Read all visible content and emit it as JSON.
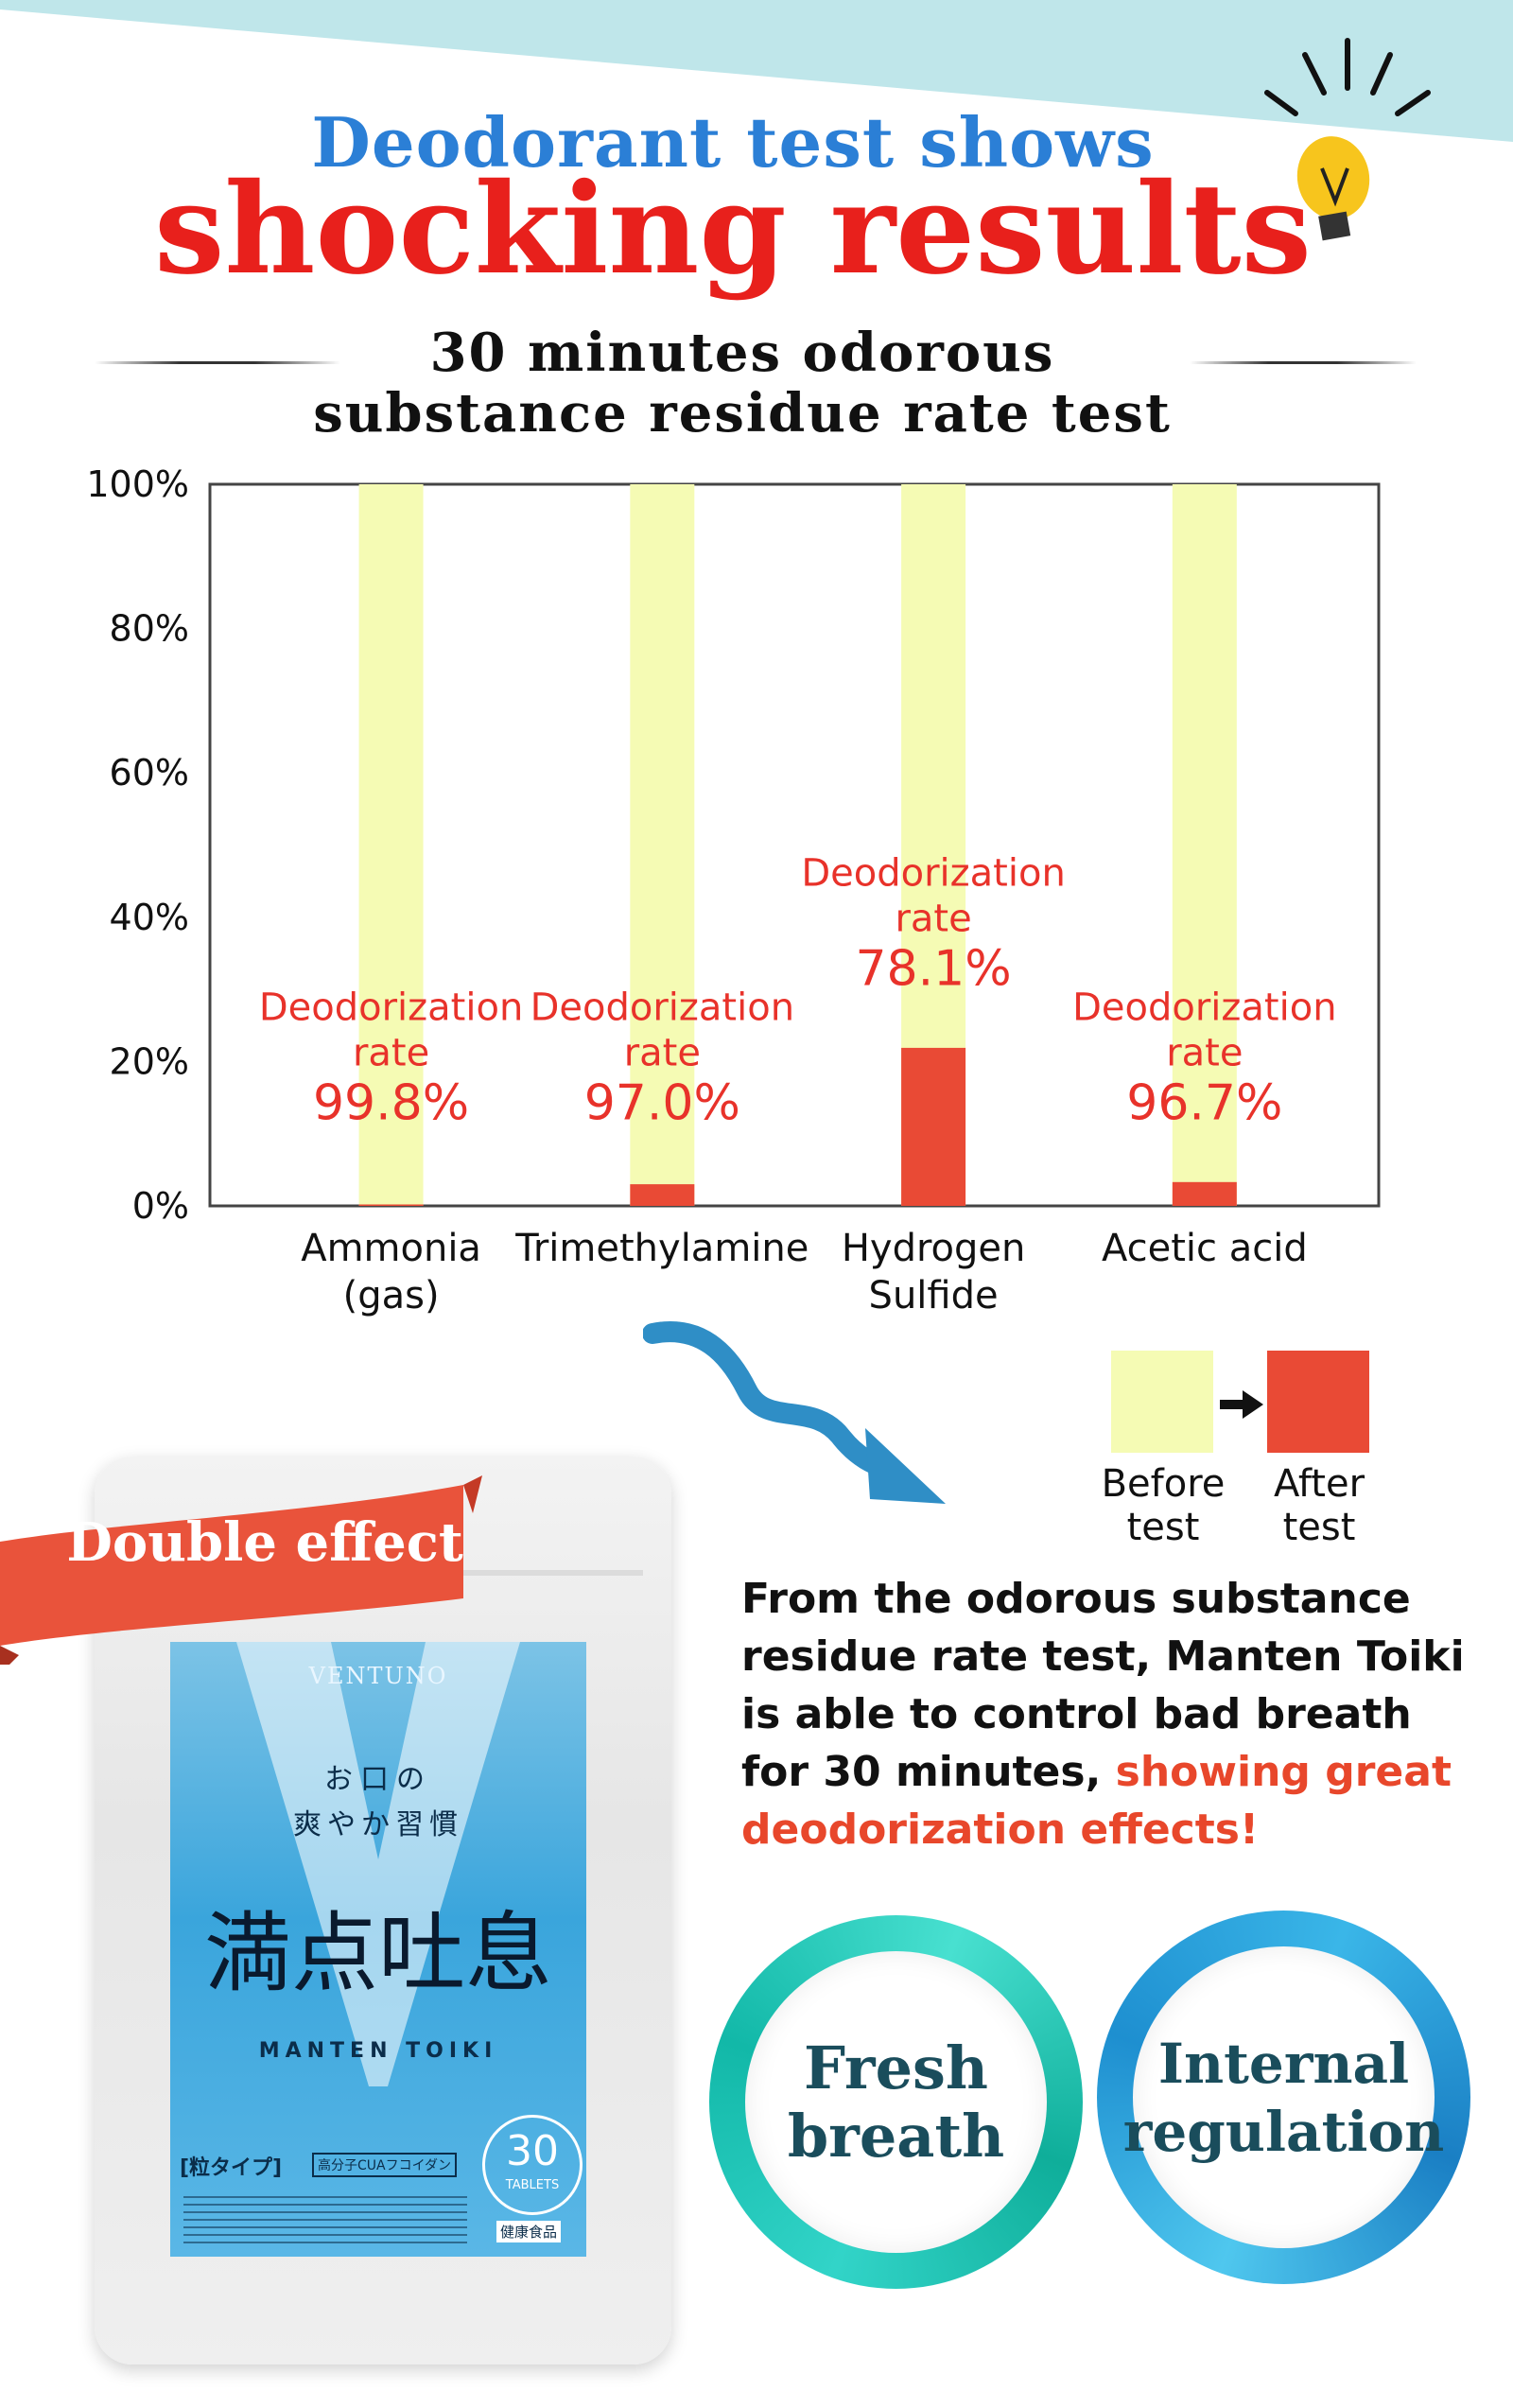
{
  "header": {
    "line1": "Deodorant test shows",
    "line2": "shocking results"
  },
  "chart_title": {
    "line1": "30 minutes odorous",
    "line2": "substance residue rate test"
  },
  "chart_data": {
    "type": "bar",
    "title": "30 minutes odorous substance residue rate test",
    "categories": [
      [
        "Ammonia",
        "(gas)"
      ],
      [
        "Trimethylamine"
      ],
      [
        "Hydrogen",
        "Sulfide"
      ],
      [
        "Acetic acid"
      ]
    ],
    "series": [
      {
        "name": "Before test",
        "values": [
          100,
          100,
          100,
          100
        ]
      },
      {
        "name": "After test",
        "values": [
          0.2,
          3.0,
          21.9,
          3.3
        ]
      }
    ],
    "annotations": [
      {
        "label_line1": "Deodorization",
        "label_line2": "rate",
        "value": "99.8%"
      },
      {
        "label_line1": "Deodorization",
        "label_line2": "rate",
        "value": "97.0%"
      },
      {
        "label_line1": "Deodorization",
        "label_line2": "rate",
        "value": "78.1%"
      },
      {
        "label_line1": "Deodorization",
        "label_line2": "rate",
        "value": "96.7%"
      }
    ],
    "yticks": [
      "0%",
      "20%",
      "40%",
      "60%",
      "80%",
      "100%"
    ],
    "ylim": [
      0,
      100
    ],
    "grid": false,
    "colors": {
      "before": "#f5fbb4",
      "after": "#e94a35",
      "annotation": "#e8322a"
    }
  },
  "legend": {
    "before_line1": "Before",
    "before_line2": "test",
    "after_line1": "After",
    "after_line2": "test"
  },
  "summary": {
    "text": "From the odorous substance residue rate test, Manten Toiki is able to control bad breath for 30 minutes, ",
    "highlight": "showing great deodorization effects!"
  },
  "ribbon": {
    "label": "Double effect"
  },
  "badges": {
    "fresh_line1": "Fresh",
    "fresh_line2": "breath",
    "internal_line1": "Internal",
    "internal_line2": "regulation"
  },
  "package": {
    "brand": "VENTUNO",
    "sub_line1": "お口の",
    "sub_line2": "爽やか習慣",
    "name_jp": "満点吐息",
    "name_en": "MANTEN TOIKI",
    "type_jp": "[粒タイプ]",
    "tag_jp": "高分子CUAフコイダン",
    "count": "30",
    "count_unit": "TABLETS",
    "category_jp": "健康食品"
  },
  "colors": {
    "accent_blue": "#2b7fd6",
    "accent_red": "#e8201c",
    "band": "#bfe6ea"
  }
}
